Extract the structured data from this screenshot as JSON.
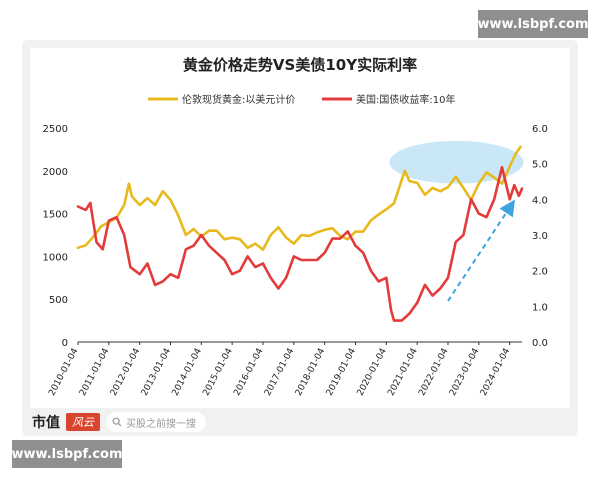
{
  "watermark_text": "www.lsbpf.com",
  "footer": {
    "brand": "市值",
    "brand_logo_text": "风云",
    "search_placeholder": "买股之前搜一搜"
  },
  "colors": {
    "gold": "#e8b91c",
    "red": "#e23b3b",
    "ellipse": "#bfe3f5",
    "arrow": "#3aa5e0"
  },
  "chart_data": {
    "type": "line",
    "title": "黄金价格走势VS美债10Y实际利率",
    "legend_position": "top",
    "grid": false,
    "x_tick_labels": [
      "2010-01-04",
      "2011-01-04",
      "2012-01-04",
      "2013-01-04",
      "2014-01-04",
      "2015-01-04",
      "2016-01-04",
      "2017-01-04",
      "2018-01-04",
      "2019-01-04",
      "2020-01-04",
      "2021-01-04",
      "2022-01-04",
      "2023-01-04",
      "2024-01-04"
    ],
    "xlim": [
      2010.0,
      2024.4
    ],
    "y_left": {
      "lim": [
        0,
        2500
      ],
      "ticks": [
        "0",
        "500",
        "1000",
        "1500",
        "2000",
        "2500"
      ],
      "tick_values": [
        0,
        500,
        1000,
        1500,
        2000,
        2500
      ]
    },
    "y_right": {
      "lim": [
        0,
        6.0
      ],
      "ticks": [
        "0.0",
        "1.0",
        "2.0",
        "3.0",
        "4.0",
        "5.0",
        "6.0"
      ],
      "tick_values": [
        0,
        1,
        2,
        3,
        4,
        5,
        6
      ]
    },
    "series": [
      {
        "name": "伦敦现货黄金:以美元计价",
        "axis": "left",
        "color": "#e8b91c",
        "x": [
          2010.0,
          2010.25,
          2010.5,
          2010.75,
          2011.0,
          2011.25,
          2011.5,
          2011.65,
          2011.75,
          2012.0,
          2012.25,
          2012.5,
          2012.75,
          2013.0,
          2013.25,
          2013.5,
          2013.75,
          2014.0,
          2014.25,
          2014.5,
          2014.75,
          2015.0,
          2015.25,
          2015.5,
          2015.75,
          2016.0,
          2016.25,
          2016.5,
          2016.75,
          2017.0,
          2017.25,
          2017.5,
          2017.75,
          2018.0,
          2018.25,
          2018.5,
          2018.75,
          2019.0,
          2019.25,
          2019.5,
          2019.75,
          2020.0,
          2020.25,
          2020.6,
          2020.75,
          2021.0,
          2021.25,
          2021.5,
          2021.75,
          2022.0,
          2022.25,
          2022.5,
          2022.75,
          2023.0,
          2023.25,
          2023.5,
          2023.75,
          2024.0,
          2024.2,
          2024.35
        ],
        "y": [
          1100,
          1130,
          1230,
          1350,
          1400,
          1450,
          1600,
          1850,
          1700,
          1600,
          1680,
          1600,
          1760,
          1660,
          1480,
          1250,
          1320,
          1230,
          1300,
          1300,
          1200,
          1220,
          1200,
          1100,
          1150,
          1080,
          1250,
          1340,
          1220,
          1150,
          1250,
          1240,
          1280,
          1310,
          1330,
          1240,
          1200,
          1290,
          1290,
          1420,
          1490,
          1550,
          1620,
          2000,
          1880,
          1860,
          1720,
          1800,
          1760,
          1810,
          1930,
          1800,
          1660,
          1850,
          1980,
          1920,
          1850,
          2050,
          2200,
          2280
        ]
      },
      {
        "name": "美国:国债收益率:10年",
        "axis": "right",
        "color": "#e23b3b",
        "x": [
          2010.0,
          2010.25,
          2010.4,
          2010.6,
          2010.8,
          2011.0,
          2011.25,
          2011.5,
          2011.7,
          2012.0,
          2012.25,
          2012.5,
          2012.75,
          2013.0,
          2013.25,
          2013.5,
          2013.75,
          2014.0,
          2014.25,
          2014.5,
          2014.75,
          2015.0,
          2015.25,
          2015.5,
          2015.75,
          2016.0,
          2016.25,
          2016.5,
          2016.75,
          2017.0,
          2017.25,
          2017.5,
          2017.75,
          2018.0,
          2018.25,
          2018.5,
          2018.75,
          2019.0,
          2019.25,
          2019.5,
          2019.75,
          2020.0,
          2020.15,
          2020.25,
          2020.5,
          2020.75,
          2021.0,
          2021.25,
          2021.5,
          2021.75,
          2022.0,
          2022.25,
          2022.5,
          2022.75,
          2023.0,
          2023.25,
          2023.5,
          2023.75,
          2024.0,
          2024.15,
          2024.3,
          2024.4
        ],
        "y": [
          3.8,
          3.7,
          3.9,
          2.8,
          2.6,
          3.4,
          3.5,
          3.0,
          2.1,
          1.9,
          2.2,
          1.6,
          1.7,
          1.9,
          1.8,
          2.6,
          2.7,
          3.0,
          2.7,
          2.5,
          2.3,
          1.9,
          2.0,
          2.4,
          2.1,
          2.2,
          1.8,
          1.5,
          1.8,
          2.4,
          2.3,
          2.3,
          2.3,
          2.5,
          2.9,
          2.9,
          3.1,
          2.7,
          2.5,
          2.0,
          1.7,
          1.8,
          0.9,
          0.6,
          0.6,
          0.8,
          1.1,
          1.6,
          1.3,
          1.5,
          1.8,
          2.8,
          3.0,
          4.0,
          3.6,
          3.5,
          4.0,
          4.9,
          4.0,
          4.4,
          4.1,
          4.3
        ]
      }
    ],
    "annotations": [
      {
        "type": "ellipse",
        "x_range": [
          2020.1,
          2024.45
        ],
        "y_left_range": [
          1850,
          2350
        ]
      },
      {
        "type": "dashed-arrow",
        "from": [
          2022.0,
          1.15
        ],
        "to": [
          2024.1,
          3.9
        ],
        "axis": "right"
      }
    ]
  }
}
